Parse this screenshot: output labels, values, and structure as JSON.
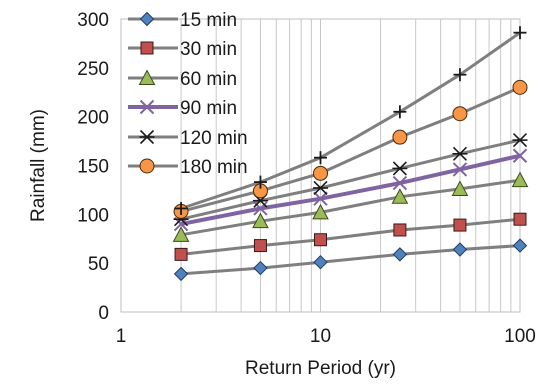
{
  "chart_data": {
    "type": "line",
    "title": "",
    "xlabel": "Return Period (yr)",
    "ylabel": "Rainfall (mm)",
    "xscale": "log",
    "xlim": [
      1,
      100
    ],
    "ylim": [
      0,
      300
    ],
    "x_ticks": [
      1,
      10,
      100
    ],
    "x_tick_labels": [
      "1",
      "10",
      "100"
    ],
    "y_ticks": [
      0,
      50,
      100,
      150,
      200,
      250,
      300
    ],
    "y_tick_labels": [
      "0",
      "50",
      "100",
      "150",
      "200",
      "250",
      "300"
    ],
    "grid": "vertical minor and major (log x)",
    "legend_position": "top-left, inside plot",
    "x": [
      2,
      5,
      10,
      25,
      50,
      100
    ],
    "series": [
      {
        "name": "15 min",
        "values": [
          39,
          45,
          51,
          59,
          64,
          68
        ],
        "marker": "diamond",
        "marker_color": "#4f81bd",
        "line_color": "#7f7f7f"
      },
      {
        "name": "30 min",
        "values": [
          59,
          68,
          74,
          84,
          89,
          95
        ],
        "marker": "square",
        "marker_color": "#c0504d",
        "line_color": "#7f7f7f"
      },
      {
        "name": "60 min",
        "values": [
          79,
          93,
          102,
          118,
          126,
          135
        ],
        "marker": "triangle",
        "marker_color": "#9bbb59",
        "line_color": "#7f7f7f"
      },
      {
        "name": "90 min",
        "values": [
          90,
          106,
          116,
          132,
          146,
          160
        ],
        "marker": "x",
        "marker_color": "#8064a2",
        "line_color": "#8064a2"
      },
      {
        "name": "120 min",
        "values": [
          95,
          114,
          127,
          147,
          162,
          176
        ],
        "marker": "star",
        "marker_color": "#1a1a1a",
        "line_color": "#7f7f7f"
      },
      {
        "name": "180 min",
        "values": [
          103,
          124,
          142,
          179,
          203,
          230
        ],
        "marker": "circle",
        "marker_color": "#f79646",
        "line_color": "#7f7f7f"
      },
      {
        "name": "",
        "values": [
          106,
          133,
          158,
          205,
          243,
          286
        ],
        "marker": "plus",
        "marker_color": "#1a1a1a",
        "line_color": "#7f7f7f"
      }
    ]
  }
}
